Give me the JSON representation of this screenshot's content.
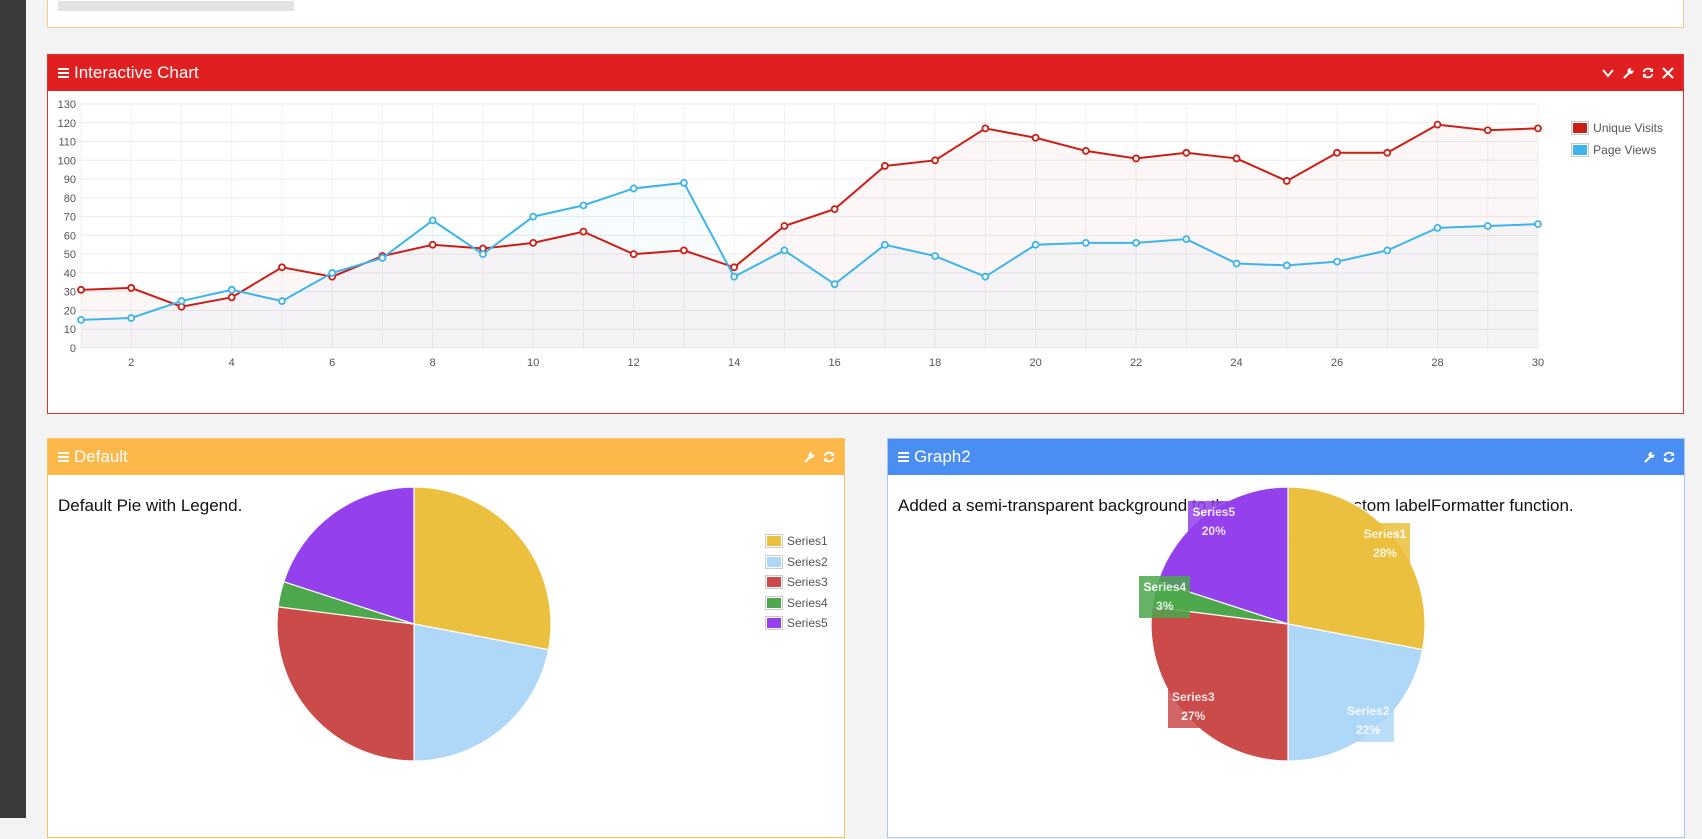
{
  "colors": {
    "red": "#e02020",
    "orange": "#fdb84a",
    "blue": "#4a8ef2",
    "line_red": "#cb1f16",
    "line_blue": "#3db4ea"
  },
  "panels": {
    "interactive": {
      "title": "Interactive Chart",
      "icons": [
        "chevron-down-icon",
        "wrench-icon",
        "refresh-icon",
        "close-icon"
      ]
    },
    "default": {
      "title": "Default",
      "description": "Default Pie with Legend.",
      "icons": [
        "wrench-icon",
        "refresh-icon"
      ]
    },
    "graph2": {
      "title": "Graph2",
      "description": "Added a semi-transparent background to the labels and a custom labelFormatter function.",
      "icons": [
        "wrench-icon",
        "refresh-icon"
      ]
    }
  },
  "chart_data": [
    {
      "type": "line",
      "x": [
        1,
        2,
        3,
        4,
        5,
        6,
        7,
        8,
        9,
        10,
        11,
        12,
        13,
        14,
        15,
        16,
        17,
        18,
        19,
        20,
        21,
        22,
        23,
        24,
        25,
        26,
        27,
        28,
        29,
        30
      ],
      "xticks": [
        2,
        4,
        6,
        8,
        10,
        12,
        14,
        16,
        18,
        20,
        22,
        24,
        26,
        28,
        30
      ],
      "yticks": [
        0,
        10,
        20,
        30,
        40,
        50,
        60,
        70,
        80,
        90,
        100,
        110,
        120,
        130
      ],
      "xlim": [
        1,
        30
      ],
      "ylim": [
        0,
        130
      ],
      "grid": true,
      "legend": "top-right",
      "series": [
        {
          "name": "Unique Visits",
          "color": "#cb1f16",
          "values": [
            31,
            32,
            22,
            27,
            43,
            38,
            49,
            55,
            53,
            56,
            62,
            50,
            52,
            43,
            65,
            74,
            97,
            100,
            117,
            112,
            105,
            101,
            104,
            101,
            89,
            104,
            104,
            119,
            116,
            117
          ]
        },
        {
          "name": "Page Views",
          "color": "#3db4ea",
          "values": [
            15,
            16,
            25,
            31,
            25,
            40,
            48,
            68,
            50,
            70,
            76,
            85,
            88,
            38,
            52,
            34,
            55,
            49,
            38,
            55,
            56,
            56,
            58,
            45,
            44,
            46,
            52,
            64,
            65,
            66
          ]
        }
      ]
    },
    {
      "type": "pie",
      "legend": "top-right",
      "series": [
        {
          "name": "Series1",
          "color": "#ebc03e",
          "value": 28
        },
        {
          "name": "Series2",
          "color": "#afd8f8",
          "value": 22
        },
        {
          "name": "Series3",
          "color": "#cb4b4b",
          "value": 27
        },
        {
          "name": "Series4",
          "color": "#4da74d",
          "value": 3
        },
        {
          "name": "Series5",
          "color": "#9440ed",
          "value": 20
        }
      ]
    },
    {
      "type": "pie",
      "labels": [
        {
          "name": "Series1",
          "percent": "28%"
        },
        {
          "name": "Series2",
          "percent": "22%"
        },
        {
          "name": "Series3",
          "percent": "27%"
        },
        {
          "name": "Series4",
          "percent": "3%"
        },
        {
          "name": "Series5",
          "percent": "20%"
        }
      ],
      "series": [
        {
          "name": "Series1",
          "color": "#ebc03e",
          "value": 28
        },
        {
          "name": "Series2",
          "color": "#afd8f8",
          "value": 22
        },
        {
          "name": "Series3",
          "color": "#cb4b4b",
          "value": 27
        },
        {
          "name": "Series4",
          "color": "#4da74d",
          "value": 3
        },
        {
          "name": "Series5",
          "color": "#9440ed",
          "value": 20
        }
      ]
    }
  ]
}
